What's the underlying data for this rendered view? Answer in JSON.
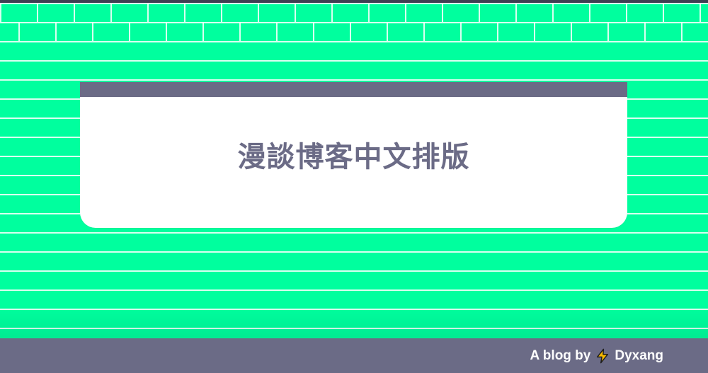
{
  "title": "漫談博客中文排版",
  "footer": {
    "prefix": "A blog by",
    "author": "Dyxang",
    "icon": "lightning-icon"
  },
  "colors": {
    "brick": "#00ff9e",
    "mortar": "#ffffff",
    "accent": "#6b6b86",
    "bolt": "#f5b800"
  }
}
